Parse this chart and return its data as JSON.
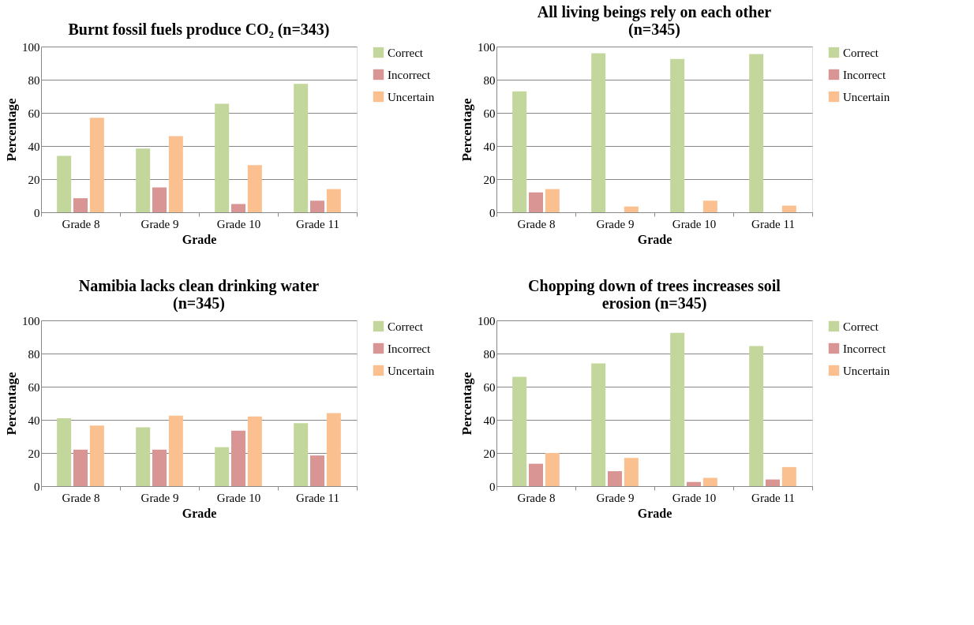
{
  "chart_data": [
    {
      "type": "bar",
      "title": "Burnt fossil fuels produce CO₂ (n=343)",
      "xlabel": "Grade",
      "ylabel": "Percentage",
      "categories": [
        "Grade 8",
        "Grade 9",
        "Grade 10",
        "Grade 11"
      ],
      "ylim": [
        0,
        100
      ],
      "yticks": [
        0,
        20,
        40,
        60,
        80,
        100
      ],
      "grid": "y",
      "legend": "right",
      "series": [
        {
          "name": "Correct",
          "color": "#c3d69b",
          "values": [
            34,
            38.5,
            65.5,
            77.5
          ]
        },
        {
          "name": "Incorrect",
          "color": "#d99594",
          "values": [
            8.5,
            15,
            5,
            7
          ]
        },
        {
          "name": "Uncertain",
          "color": "#fac090",
          "values": [
            57,
            46,
            28.5,
            14
          ]
        }
      ]
    },
    {
      "type": "bar",
      "title": "All living beings rely on each other (n=345)",
      "xlabel": "Grade",
      "ylabel": "Percentage",
      "categories": [
        "Grade 8",
        "Grade 9",
        "Grade 10",
        "Grade 11"
      ],
      "ylim": [
        0,
        100
      ],
      "yticks": [
        0,
        20,
        40,
        60,
        80,
        100
      ],
      "grid": "y",
      "legend": "right",
      "series": [
        {
          "name": "Correct",
          "color": "#c3d69b",
          "values": [
            73,
            96,
            92.5,
            95.5
          ]
        },
        {
          "name": "Incorrect",
          "color": "#d99594",
          "values": [
            12,
            0,
            0,
            0
          ]
        },
        {
          "name": "Uncertain",
          "color": "#fac090",
          "values": [
            14,
            3.5,
            7,
            4
          ]
        }
      ]
    },
    {
      "type": "bar",
      "title": "Namibia lacks clean drinking water (n=345)",
      "xlabel": "Grade",
      "ylabel": "Percentage",
      "categories": [
        "Grade 8",
        "Grade 9",
        "Grade 10",
        "Grade 11"
      ],
      "ylim": [
        0,
        100
      ],
      "yticks": [
        0,
        20,
        40,
        60,
        80,
        100
      ],
      "grid": "y",
      "legend": "right",
      "series": [
        {
          "name": "Correct",
          "color": "#c3d69b",
          "values": [
            41,
            35.5,
            23.5,
            38
          ]
        },
        {
          "name": "Incorrect",
          "color": "#d99594",
          "values": [
            22,
            22,
            33.5,
            18.5
          ]
        },
        {
          "name": "Uncertain",
          "color": "#fac090",
          "values": [
            36.5,
            42.5,
            42,
            44
          ]
        }
      ]
    },
    {
      "type": "bar",
      "title": "Chopping down of trees increases soil erosion (n=345)",
      "xlabel": "Grade",
      "ylabel": "Percentage",
      "categories": [
        "Grade 8",
        "Grade 9",
        "Grade 10",
        "Grade 11"
      ],
      "ylim": [
        0,
        100
      ],
      "yticks": [
        0,
        20,
        40,
        60,
        80,
        100
      ],
      "grid": "y",
      "legend": "right",
      "series": [
        {
          "name": "Correct",
          "color": "#c3d69b",
          "values": [
            66,
            74,
            92.5,
            84.5
          ]
        },
        {
          "name": "Incorrect",
          "color": "#d99594",
          "values": [
            13.5,
            9,
            2.5,
            4
          ]
        },
        {
          "name": "Uncertain",
          "color": "#fac090",
          "values": [
            20,
            17,
            5,
            11.5
          ]
        }
      ]
    }
  ]
}
